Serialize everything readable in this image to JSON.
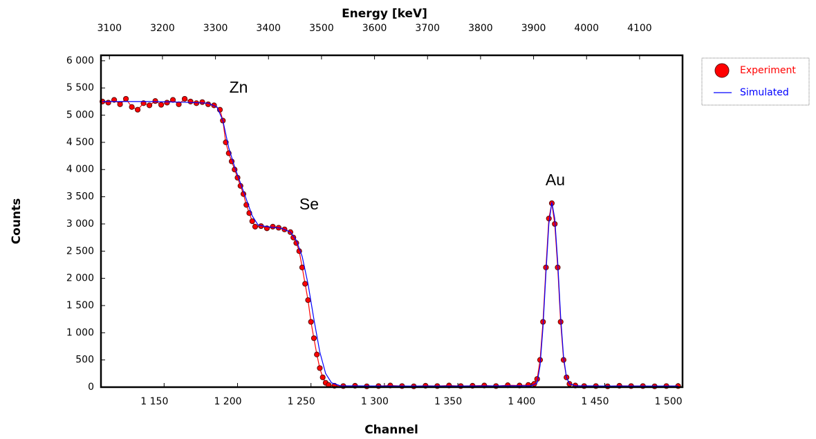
{
  "chart_data": {
    "type": "scatter",
    "x2label": "Energy [keV]",
    "xlabel": "Channel",
    "ylabel": "Counts",
    "xlim": [
      1107,
      1503
    ],
    "xticks": [
      {
        "value": 1150,
        "label": "1 150"
      },
      {
        "value": 1200,
        "label": "1 200"
      },
      {
        "value": 1250,
        "label": "1 250"
      },
      {
        "value": 1300,
        "label": "1 300"
      },
      {
        "value": 1350,
        "label": "1 350"
      },
      {
        "value": 1400,
        "label": "1 400"
      },
      {
        "value": 1450,
        "label": "1 450"
      },
      {
        "value": 1500,
        "label": "1 500"
      }
    ],
    "x2lim": [
      3084,
      4181
    ],
    "x2ticks": [
      3100,
      3200,
      3300,
      3400,
      3500,
      3600,
      3700,
      3800,
      3900,
      4000,
      4100
    ],
    "ylim": [
      0,
      6100
    ],
    "yticks": [
      0,
      500,
      {
        "value": 1000,
        "label": "1 000"
      },
      {
        "value": 1500,
        "label": "1 500"
      },
      {
        "value": 2000,
        "label": "2 000"
      },
      {
        "value": 2500,
        "label": "2 500"
      },
      {
        "value": 3000,
        "label": "3 000"
      },
      {
        "value": 3500,
        "label": "3 500"
      },
      {
        "value": 4000,
        "label": "4 000"
      },
      {
        "value": 4500,
        "label": "4 500"
      },
      {
        "value": 5000,
        "label": "5 000"
      },
      {
        "value": 5500,
        "label": "5 500"
      },
      {
        "value": 6000,
        "label": "6 000"
      }
    ],
    "annotations": [
      "Zn",
      "Se",
      "Au"
    ],
    "legend": "outside-right",
    "series": [
      {
        "name": "Experiment",
        "color": "#ff0000",
        "marker": "circle",
        "x": [
          1108,
          1112,
          1116,
          1120,
          1124,
          1128,
          1132,
          1136,
          1140,
          1144,
          1148,
          1152,
          1156,
          1160,
          1164,
          1168,
          1172,
          1176,
          1180,
          1184,
          1188,
          1190,
          1192,
          1194,
          1196,
          1198,
          1200,
          1202,
          1204,
          1206,
          1208,
          1210,
          1212,
          1216,
          1220,
          1224,
          1228,
          1232,
          1236,
          1238,
          1240,
          1242,
          1244,
          1246,
          1248,
          1250,
          1252,
          1254,
          1256,
          1258,
          1260,
          1262,
          1266,
          1272,
          1280,
          1288,
          1296,
          1304,
          1312,
          1320,
          1328,
          1336,
          1344,
          1352,
          1360,
          1368,
          1376,
          1384,
          1392,
          1398,
          1402,
          1404,
          1406,
          1408,
          1410,
          1412,
          1414,
          1416,
          1418,
          1420,
          1422,
          1424,
          1426,
          1430,
          1436,
          1444,
          1452,
          1460,
          1468,
          1476,
          1484,
          1492,
          1500
        ],
        "values": [
          5250,
          5230,
          5280,
          5200,
          5300,
          5150,
          5100,
          5220,
          5180,
          5260,
          5190,
          5230,
          5280,
          5200,
          5300,
          5250,
          5220,
          5240,
          5200,
          5180,
          5100,
          4900,
          4500,
          4300,
          4150,
          4000,
          3850,
          3700,
          3550,
          3350,
          3200,
          3050,
          2950,
          2960,
          2920,
          2950,
          2930,
          2900,
          2850,
          2750,
          2650,
          2500,
          2200,
          1900,
          1600,
          1200,
          900,
          600,
          350,
          180,
          80,
          40,
          25,
          20,
          25,
          15,
          20,
          30,
          20,
          15,
          25,
          20,
          30,
          20,
          25,
          30,
          20,
          35,
          30,
          40,
          60,
          150,
          500,
          1200,
          2200,
          3100,
          3380,
          3000,
          2200,
          1200,
          500,
          180,
          60,
          30,
          20,
          20,
          15,
          25,
          20,
          20,
          15,
          20,
          20
        ]
      },
      {
        "name": "Simulated",
        "color": "#0000ff",
        "marker": "line",
        "x": [
          1108,
          1120,
          1140,
          1160,
          1180,
          1186,
          1190,
          1194,
          1198,
          1202,
          1206,
          1210,
          1214,
          1220,
          1230,
          1236,
          1240,
          1244,
          1248,
          1252,
          1256,
          1260,
          1264,
          1270,
          1300,
          1350,
          1400,
          1404,
          1406,
          1408,
          1410,
          1412,
          1414,
          1416,
          1418,
          1420,
          1422,
          1424,
          1426,
          1430,
          1450,
          1500
        ],
        "values": [
          5250,
          5250,
          5250,
          5240,
          5220,
          5150,
          4900,
          4400,
          4050,
          3750,
          3450,
          3150,
          2980,
          2950,
          2920,
          2850,
          2700,
          2400,
          1900,
          1250,
          650,
          250,
          80,
          25,
          20,
          20,
          25,
          80,
          400,
          1100,
          2100,
          3000,
          3400,
          3100,
          2300,
          1300,
          550,
          180,
          60,
          25,
          20,
          20
        ]
      }
    ]
  }
}
